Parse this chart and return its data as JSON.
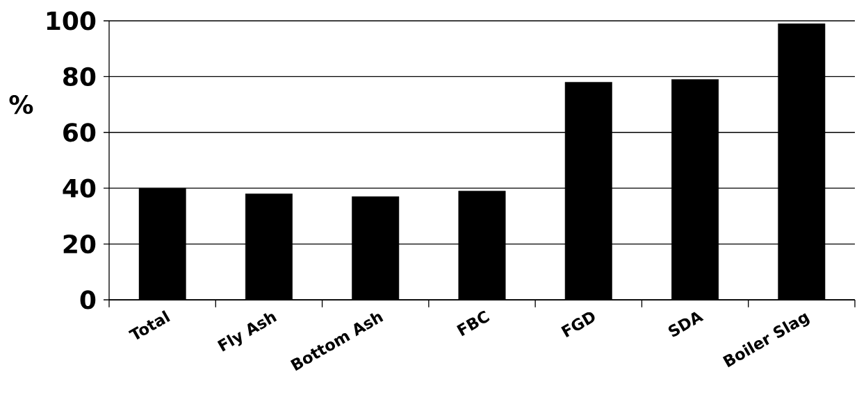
{
  "chart_data": {
    "type": "bar",
    "ylabel": "%",
    "categories": [
      "Total",
      "Fly Ash",
      "Bottom Ash",
      "FBC",
      "FGD",
      "SDA",
      "Boiler Slag"
    ],
    "values": [
      40,
      38,
      37,
      39,
      78,
      79,
      99
    ],
    "color": "#000000",
    "ylim": [
      0,
      100
    ],
    "yticks": [
      0,
      20,
      40,
      60,
      80,
      100
    ],
    "grid": "y"
  }
}
